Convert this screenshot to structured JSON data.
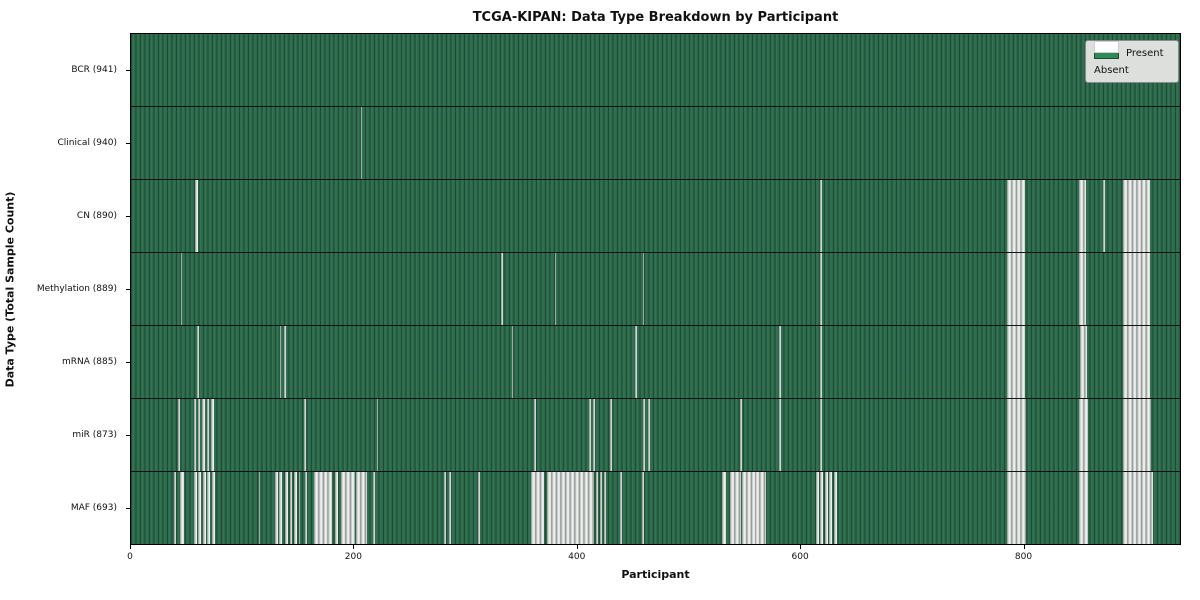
{
  "chart_data": {
    "type": "heatmap",
    "title": "TCGA-KIPAN: Data Type Breakdown by Participant",
    "xlabel": "Participant",
    "ylabel": "Data Type (Total Sample Count)",
    "x_range": [
      0,
      941
    ],
    "x_ticks": [
      0,
      200,
      400,
      600,
      800
    ],
    "grid": "horizontal-row-separators",
    "legend": {
      "position": "upper-right",
      "entries": [
        {
          "label": "Present",
          "color": "#2e8b57"
        },
        {
          "label": "Absent",
          "color": "#ffffff"
        }
      ]
    },
    "colors": {
      "present_base": "#2c684a",
      "present_dark": "#1d4c35",
      "present_light": "#357556",
      "absent_center": "#eef0ee",
      "absent_mid": "#c2c7c4",
      "absent_edge": "#878e8b",
      "row_separator": "#141414",
      "legend_bg": "#dcdfdc"
    },
    "rows": [
      {
        "label": "BCR (941)",
        "data_type": "BCR",
        "present_count": 941,
        "absent_ranges": []
      },
      {
        "label": "Clinical (940)",
        "data_type": "Clinical",
        "present_count": 940,
        "absent_ranges": [
          [
            206,
            207.5
          ]
        ]
      },
      {
        "label": "CN (890)",
        "data_type": "CN",
        "present_count": 890,
        "absent_ranges": [
          [
            57.5,
            60
          ],
          [
            618,
            619.5
          ],
          [
            786,
            802
          ],
          [
            850,
            857
          ],
          [
            872,
            873.5
          ],
          [
            890,
            914
          ]
        ]
      },
      {
        "label": "Methylation (889)",
        "data_type": "Methylation",
        "present_count": 889,
        "absent_ranges": [
          [
            44.5,
            46
          ],
          [
            332,
            333.5
          ],
          [
            380,
            381.5
          ],
          [
            459,
            460.5
          ],
          [
            618,
            619.5
          ],
          [
            786,
            802
          ],
          [
            850,
            857
          ],
          [
            890,
            914
          ]
        ]
      },
      {
        "label": "mRNA (885)",
        "data_type": "mRNA",
        "present_count": 885,
        "absent_ranges": [
          [
            59,
            61
          ],
          [
            133.5,
            135
          ],
          [
            137.5,
            139
          ],
          [
            341.5,
            343
          ],
          [
            452.5,
            454
          ],
          [
            581.5,
            583
          ],
          [
            618.5,
            620
          ],
          [
            786,
            802
          ],
          [
            851,
            858
          ],
          [
            890,
            914
          ]
        ]
      },
      {
        "label": "miR (873)",
        "data_type": "miR",
        "present_count": 873,
        "absent_ranges": [
          [
            42.5,
            44
          ],
          [
            56.5,
            58.5
          ],
          [
            60,
            62
          ],
          [
            64,
            66
          ],
          [
            68,
            70
          ],
          [
            72,
            74.5
          ],
          [
            155.5,
            157
          ],
          [
            220.5,
            222
          ],
          [
            361.5,
            363.5
          ],
          [
            410.5,
            412.5
          ],
          [
            414.5,
            416
          ],
          [
            430,
            431.5
          ],
          [
            459,
            461
          ],
          [
            464,
            465.5
          ],
          [
            546.5,
            548.5
          ],
          [
            581.5,
            583.5
          ],
          [
            618,
            620
          ],
          [
            786,
            802.5
          ],
          [
            850.5,
            858.5
          ],
          [
            889.5,
            915
          ]
        ]
      },
      {
        "label": "MAF (693)",
        "data_type": "MAF",
        "present_count": 693,
        "absent_ranges": [
          [
            39,
            40.5
          ],
          [
            44,
            47.5
          ],
          [
            56.5,
            59
          ],
          [
            60.5,
            63
          ],
          [
            64.5,
            67
          ],
          [
            68.5,
            71
          ],
          [
            73,
            75
          ],
          [
            114.5,
            116
          ],
          [
            129.5,
            131.5
          ],
          [
            133,
            135.5
          ],
          [
            138.5,
            141
          ],
          [
            142.5,
            144.5
          ],
          [
            146,
            148.5
          ],
          [
            150.5,
            152
          ],
          [
            156.5,
            158
          ],
          [
            164.5,
            180.5
          ],
          [
            183,
            185.5
          ],
          [
            188.5,
            200.5
          ],
          [
            202,
            211.5
          ],
          [
            217.5,
            219
          ],
          [
            280.5,
            282.5
          ],
          [
            285.5,
            287.5
          ],
          [
            311.5,
            313
          ],
          [
            358.5,
            370.5
          ],
          [
            373.5,
            415.5
          ],
          [
            417,
            419
          ],
          [
            420.5,
            422.5
          ],
          [
            424,
            426.5
          ],
          [
            438.5,
            440.5
          ],
          [
            458.5,
            460.5
          ],
          [
            530.5,
            534
          ],
          [
            537.5,
            547
          ],
          [
            548,
            559.5
          ],
          [
            560,
            569.5
          ],
          [
            614.5,
            617
          ],
          [
            618.5,
            621
          ],
          [
            622.5,
            625
          ],
          [
            626.5,
            629
          ],
          [
            630.5,
            633
          ],
          [
            785.5,
            802.5
          ],
          [
            850.5,
            858.5
          ],
          [
            889.5,
            917
          ]
        ]
      }
    ]
  }
}
